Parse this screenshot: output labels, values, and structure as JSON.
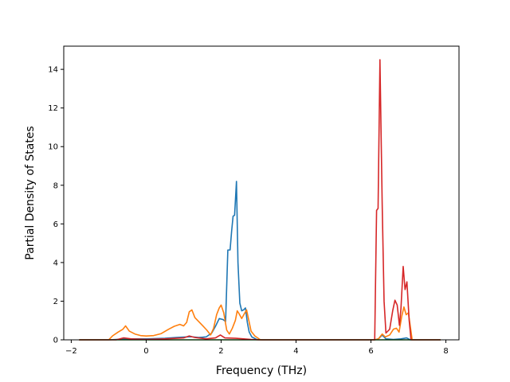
{
  "chart_data": {
    "type": "line",
    "title": "",
    "xlabel": "Frequency (THz)",
    "ylabel": "Partial Density of States",
    "xlim": [
      -2.2,
      8.35
    ],
    "ylim": [
      0,
      15.2
    ],
    "xticks": [
      -2,
      0,
      2,
      4,
      6,
      8
    ],
    "yticks": [
      0,
      2,
      4,
      6,
      8,
      10,
      12,
      14
    ],
    "xtick_labels": [
      "−2",
      "0",
      "2",
      "4",
      "6",
      "8"
    ],
    "ytick_labels": [
      "0",
      "2",
      "4",
      "6",
      "8",
      "10",
      "12",
      "14"
    ],
    "grid": false,
    "legend": "none",
    "series": [
      {
        "color": "#1f77b4",
        "points": [
          [
            -1.78,
            0
          ],
          [
            -1.0,
            0
          ],
          [
            -0.8,
            0.02
          ],
          [
            -0.5,
            0.05
          ],
          [
            0,
            0.05
          ],
          [
            0.5,
            0.08
          ],
          [
            0.8,
            0.12
          ],
          [
            1.0,
            0.14
          ],
          [
            1.2,
            0.16
          ],
          [
            1.4,
            0.12
          ],
          [
            1.6,
            0.15
          ],
          [
            1.75,
            0.35
          ],
          [
            1.85,
            0.7
          ],
          [
            1.95,
            1.1
          ],
          [
            2.05,
            1.05
          ],
          [
            2.12,
            0.95
          ],
          [
            2.18,
            4.65
          ],
          [
            2.24,
            4.65
          ],
          [
            2.28,
            5.6
          ],
          [
            2.32,
            6.4
          ],
          [
            2.36,
            6.45
          ],
          [
            2.41,
            8.2
          ],
          [
            2.45,
            4.0
          ],
          [
            2.5,
            1.9
          ],
          [
            2.55,
            1.5
          ],
          [
            2.6,
            1.55
          ],
          [
            2.65,
            1.65
          ],
          [
            2.7,
            0.9
          ],
          [
            2.75,
            0.4
          ],
          [
            2.82,
            0.15
          ],
          [
            2.95,
            0.02
          ],
          [
            3.1,
            0
          ],
          [
            6.1,
            0
          ],
          [
            6.2,
            0.05
          ],
          [
            6.3,
            0.25
          ],
          [
            6.4,
            0.05
          ],
          [
            6.6,
            0.02
          ],
          [
            6.8,
            0.05
          ],
          [
            6.95,
            0.1
          ],
          [
            7.05,
            0
          ],
          [
            7.85,
            0
          ]
        ]
      },
      {
        "color": "#ff7f0e",
        "points": [
          [
            -1.78,
            0
          ],
          [
            -1.0,
            0
          ],
          [
            -0.9,
            0.2
          ],
          [
            -0.75,
            0.4
          ],
          [
            -0.62,
            0.55
          ],
          [
            -0.55,
            0.72
          ],
          [
            -0.45,
            0.45
          ],
          [
            -0.3,
            0.3
          ],
          [
            -0.15,
            0.22
          ],
          [
            0,
            0.2
          ],
          [
            0.2,
            0.22
          ],
          [
            0.4,
            0.32
          ],
          [
            0.6,
            0.55
          ],
          [
            0.75,
            0.7
          ],
          [
            0.9,
            0.8
          ],
          [
            1.0,
            0.72
          ],
          [
            1.08,
            0.9
          ],
          [
            1.15,
            1.45
          ],
          [
            1.22,
            1.55
          ],
          [
            1.3,
            1.15
          ],
          [
            1.4,
            0.95
          ],
          [
            1.5,
            0.75
          ],
          [
            1.62,
            0.5
          ],
          [
            1.72,
            0.25
          ],
          [
            1.8,
            0.6
          ],
          [
            1.88,
            1.3
          ],
          [
            1.95,
            1.65
          ],
          [
            2.0,
            1.8
          ],
          [
            2.07,
            1.4
          ],
          [
            2.15,
            0.5
          ],
          [
            2.22,
            0.3
          ],
          [
            2.3,
            0.6
          ],
          [
            2.38,
            1.0
          ],
          [
            2.43,
            1.5
          ],
          [
            2.48,
            1.35
          ],
          [
            2.55,
            1.1
          ],
          [
            2.62,
            1.35
          ],
          [
            2.68,
            1.55
          ],
          [
            2.74,
            1.0
          ],
          [
            2.8,
            0.45
          ],
          [
            2.9,
            0.2
          ],
          [
            3.05,
            0
          ],
          [
            6.1,
            0
          ],
          [
            6.2,
            0.05
          ],
          [
            6.3,
            0.3
          ],
          [
            6.38,
            0.15
          ],
          [
            6.5,
            0.25
          ],
          [
            6.6,
            0.55
          ],
          [
            6.68,
            0.6
          ],
          [
            6.75,
            0.4
          ],
          [
            6.82,
            1.2
          ],
          [
            6.88,
            1.7
          ],
          [
            6.94,
            1.3
          ],
          [
            7.0,
            1.4
          ],
          [
            7.05,
            0.7
          ],
          [
            7.1,
            0
          ],
          [
            7.85,
            0
          ]
        ]
      },
      {
        "color": "#2ca02c",
        "points": [
          [
            -1.78,
            0
          ],
          [
            7.85,
            0
          ]
        ]
      },
      {
        "color": "#d62728",
        "points": [
          [
            -1.78,
            0
          ],
          [
            -0.8,
            0
          ],
          [
            -0.6,
            0.1
          ],
          [
            -0.4,
            0.05
          ],
          [
            0,
            0.02
          ],
          [
            0.5,
            0.05
          ],
          [
            1.0,
            0.1
          ],
          [
            1.15,
            0.2
          ],
          [
            1.3,
            0.12
          ],
          [
            1.6,
            0.05
          ],
          [
            1.85,
            0.1
          ],
          [
            1.98,
            0.25
          ],
          [
            2.1,
            0.1
          ],
          [
            2.4,
            0.08
          ],
          [
            2.8,
            0.02
          ],
          [
            3.0,
            0
          ],
          [
            6.1,
            0
          ],
          [
            6.15,
            6.7
          ],
          [
            6.19,
            6.8
          ],
          [
            6.24,
            14.5
          ],
          [
            6.3,
            7.0
          ],
          [
            6.35,
            2.0
          ],
          [
            6.4,
            0.35
          ],
          [
            6.5,
            0.55
          ],
          [
            6.58,
            1.5
          ],
          [
            6.64,
            2.05
          ],
          [
            6.7,
            1.8
          ],
          [
            6.76,
            0.75
          ],
          [
            6.8,
            1.6
          ],
          [
            6.86,
            3.8
          ],
          [
            6.91,
            2.6
          ],
          [
            6.96,
            3.0
          ],
          [
            7.02,
            1.0
          ],
          [
            7.07,
            0
          ],
          [
            7.85,
            0
          ]
        ]
      }
    ]
  }
}
